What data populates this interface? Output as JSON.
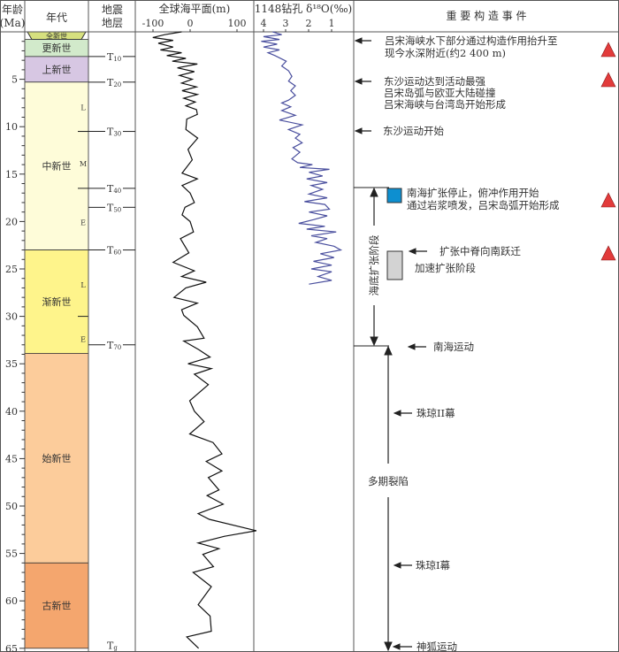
{
  "headers": {
    "age_line1": "年龄",
    "age_line2": "(Ma)",
    "era": "年代",
    "seismic_line1": "地震",
    "seismic_line2": "地层",
    "sealevel": "全球海平面(m)",
    "sealevel_ticks": [
      "-100",
      "0",
      "100"
    ],
    "d18o": "1148钻孔 δ¹⁸O(‰)",
    "d18o_ticks": [
      "4",
      "3",
      "2",
      "1"
    ],
    "events": "重 要 构 造 事 件"
  },
  "age_ticks": [
    "5",
    "10",
    "15",
    "20",
    "25",
    "30",
    "35",
    "40",
    "45",
    "50",
    "55",
    "60",
    "65"
  ],
  "epochs": [
    {
      "name": "全新世",
      "top": 0,
      "bottom": 0.8,
      "color": "#d6e07e"
    },
    {
      "name": "更新世",
      "top": 0.8,
      "bottom": 2.6,
      "color": "#d2eacb"
    },
    {
      "name": "上新世",
      "top": 2.6,
      "bottom": 5.3,
      "color": "#d7c7e3"
    },
    {
      "name": "中新世",
      "top": 5.3,
      "bottom": 23.0,
      "color": "#fefcd9"
    },
    {
      "name": "渐新世",
      "top": 23.0,
      "bottom": 33.9,
      "color": "#fef48b"
    },
    {
      "name": "始新世",
      "top": 33.9,
      "bottom": 56.0,
      "color": "#fccc9b"
    },
    {
      "name": "古新世",
      "top": 56.0,
      "bottom": 65.0,
      "color": "#f4a66e"
    }
  ],
  "sub_epochs": [
    {
      "label": "L",
      "age": 7.9
    },
    {
      "label": "M",
      "age": 13.8
    },
    {
      "label": "E",
      "age": 20.0
    },
    {
      "label": "L",
      "age": 26.6
    },
    {
      "label": "E",
      "age": 32.3
    }
  ],
  "horizons": [
    {
      "name": "T",
      "sub": "10",
      "age": 2.6
    },
    {
      "name": "T",
      "sub": "20",
      "age": 5.3
    },
    {
      "name": "T",
      "sub": "30",
      "age": 10.5
    },
    {
      "name": "T",
      "sub": "40",
      "age": 16.5
    },
    {
      "name": "T",
      "sub": "50",
      "age": 18.5
    },
    {
      "name": "T",
      "sub": "60",
      "age": 23.0
    },
    {
      "name": "T",
      "sub": "70",
      "age": 33.0
    },
    {
      "name": "T",
      "sub": "g",
      "age": 64.7
    }
  ],
  "chart_data": [
    {
      "type": "line",
      "title": "全球海平面(m)",
      "x_range": [
        -130,
        150
      ],
      "y_range_age_ma": [
        0,
        65
      ],
      "points": [
        [
          0,
          -20
        ],
        [
          0.3,
          -60
        ],
        [
          0.6,
          -88
        ],
        [
          0.9,
          -40
        ],
        [
          1.2,
          -75
        ],
        [
          1.6,
          -40
        ],
        [
          1.9,
          -70
        ],
        [
          2.2,
          -20
        ],
        [
          2.5,
          -55
        ],
        [
          2.8,
          -10
        ],
        [
          3.1,
          -42
        ],
        [
          3.4,
          17
        ],
        [
          3.8,
          -30
        ],
        [
          4.2,
          10
        ],
        [
          4.6,
          -25
        ],
        [
          5,
          5
        ],
        [
          5.4,
          -20
        ],
        [
          5.8,
          15
        ],
        [
          6.2,
          -19
        ],
        [
          6.6,
          17
        ],
        [
          7,
          -15
        ],
        [
          7.4,
          12
        ],
        [
          7.8,
          -10
        ],
        [
          8.2,
          15
        ],
        [
          8.7,
          17
        ],
        [
          9.2,
          -8
        ],
        [
          10.3,
          -10
        ],
        [
          11.2,
          18
        ],
        [
          12.4,
          -5
        ],
        [
          13.5,
          5
        ],
        [
          14.9,
          -19
        ],
        [
          15.5,
          17
        ],
        [
          16.2,
          -19
        ],
        [
          17,
          0
        ],
        [
          18,
          10
        ],
        [
          18.5,
          -12
        ],
        [
          19.3,
          -19
        ],
        [
          20,
          0
        ],
        [
          21.1,
          8
        ],
        [
          21.8,
          -23
        ],
        [
          23.3,
          -3
        ],
        [
          24.3,
          -40
        ],
        [
          25.2,
          10
        ],
        [
          25.8,
          -20
        ],
        [
          26.4,
          38
        ],
        [
          27,
          -10
        ],
        [
          28,
          -38
        ],
        [
          28.6,
          17
        ],
        [
          29.3,
          -20
        ],
        [
          29.9,
          -15
        ],
        [
          31.1,
          17
        ],
        [
          32.3,
          33
        ],
        [
          32.6,
          -15
        ],
        [
          33.5,
          20
        ],
        [
          34.3,
          47
        ],
        [
          35,
          -5
        ],
        [
          35.5,
          50
        ],
        [
          36.1,
          10
        ],
        [
          37.2,
          43
        ],
        [
          38.9,
          -1
        ],
        [
          40,
          10
        ],
        [
          41.1,
          33
        ],
        [
          42.4,
          -1
        ],
        [
          43.3,
          54
        ],
        [
          44.5,
          75
        ],
        [
          45.3,
          38
        ],
        [
          46.3,
          75
        ],
        [
          47,
          43
        ],
        [
          48.3,
          68
        ],
        [
          48.9,
          40
        ],
        [
          49.8,
          78
        ],
        [
          50.8,
          19
        ],
        [
          51.4,
          45
        ],
        [
          52.6,
          156
        ],
        [
          53.2,
          80
        ],
        [
          53.9,
          19
        ],
        [
          54.5,
          68
        ],
        [
          55.1,
          30
        ],
        [
          56.4,
          55
        ],
        [
          57,
          7
        ],
        [
          58.5,
          50
        ],
        [
          60.4,
          19
        ],
        [
          61.6,
          47
        ],
        [
          63.2,
          50
        ],
        [
          63.8,
          -8
        ],
        [
          65,
          20
        ]
      ],
      "color": "#111111"
    },
    {
      "type": "line",
      "title": "1148钻孔 δ18O(‰)",
      "x_range_reversed": [
        4.1,
        0.3
      ],
      "y_range_age_ma": [
        0,
        26.6
      ],
      "points": [
        [
          0,
          3.6
        ],
        [
          0.3,
          3.2
        ],
        [
          0.5,
          4.0
        ],
        [
          0.8,
          3.3
        ],
        [
          1.0,
          4.1
        ],
        [
          1.3,
          3.4
        ],
        [
          1.6,
          4.0
        ],
        [
          1.9,
          3.3
        ],
        [
          2.2,
          3.8
        ],
        [
          2.5,
          3.5
        ],
        [
          3.1,
          3.0
        ],
        [
          3.6,
          3.2
        ],
        [
          4.1,
          2.9
        ],
        [
          4.7,
          2.75
        ],
        [
          5.2,
          2.9
        ],
        [
          5.7,
          2.6
        ],
        [
          6.2,
          2.8
        ],
        [
          6.7,
          2.6
        ],
        [
          7.2,
          2.9
        ],
        [
          7.5,
          3.2
        ],
        [
          7.9,
          2.8
        ],
        [
          8.3,
          3.2
        ],
        [
          8.8,
          2.6
        ],
        [
          9.3,
          3.3
        ],
        [
          9.8,
          2.3
        ],
        [
          10.3,
          2.9
        ],
        [
          10.8,
          2.4
        ],
        [
          11.2,
          2.6
        ],
        [
          11.7,
          2.3
        ],
        [
          12.2,
          2.7
        ],
        [
          12.7,
          2.4
        ],
        [
          13.4,
          2.75
        ],
        [
          13.8,
          2.5
        ],
        [
          14.0,
          1.85
        ],
        [
          14.3,
          2.4
        ],
        [
          14.5,
          1.1
        ],
        [
          14.8,
          2.0
        ],
        [
          15.2,
          1.4
        ],
        [
          15.5,
          2.1
        ],
        [
          15.9,
          1.2
        ],
        [
          16.2,
          1.9
        ],
        [
          16.6,
          1.4
        ],
        [
          17.1,
          2.0
        ],
        [
          17.5,
          1.2
        ],
        [
          17.9,
          2.2
        ],
        [
          18.2,
          1.3
        ],
        [
          18.7,
          1.1
        ],
        [
          19.0,
          2.0
        ],
        [
          19.4,
          1.2
        ],
        [
          19.8,
          1.8
        ],
        [
          20.2,
          2.45
        ],
        [
          20.5,
          1.3
        ],
        [
          20.8,
          2.1
        ],
        [
          21.1,
          0.8
        ],
        [
          21.5,
          1.9
        ],
        [
          21.8,
          1.2
        ],
        [
          22.2,
          1.7
        ],
        [
          22.6,
          0.9
        ],
        [
          23.0,
          0.6
        ],
        [
          23.4,
          1.5
        ],
        [
          23.8,
          0.9
        ],
        [
          24.2,
          1.8
        ],
        [
          24.6,
          1.0
        ],
        [
          25.0,
          1.9
        ],
        [
          25.3,
          1.0
        ],
        [
          25.8,
          1.6
        ],
        [
          26.2,
          1.0
        ],
        [
          26.6,
          2.0
        ]
      ],
      "color": "#4a4f9e"
    }
  ],
  "events": {
    "e1_line1": "吕宋海峡水下部分通过构造作用抬升至",
    "e1_line2": "现今水深附近(约2 400 m)",
    "e2_line1": "东沙运动达到活动最强",
    "e2_line2": "吕宋岛弧与欧亚大陆碰撞",
    "e2_line3": "吕宋海峡与台湾岛开始形成",
    "e3": "东沙运动开始",
    "e4_line1": "南海扩张停止，俯冲作用开始",
    "e4_line2": "通过岩浆喷发，吕宋岛弧开始形成",
    "e5": "扩张中脊向南跃迁",
    "e6": "加速扩张阶段",
    "spreading_stage": "海底扩张阶段",
    "e7": "南海运动",
    "e8": "珠琼II幕",
    "rifting": "多期裂陷",
    "e9": "珠琼I幕",
    "e10": "神狐运动",
    "triangle_color": "#e23b3b",
    "blue_box_color": "#0d8fd0",
    "gray_box_color": "#d3d3d3"
  }
}
